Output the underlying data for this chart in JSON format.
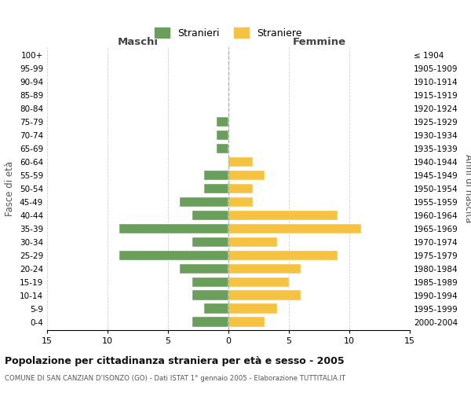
{
  "age_groups": [
    "100+",
    "95-99",
    "90-94",
    "85-89",
    "80-84",
    "75-79",
    "70-74",
    "65-69",
    "60-64",
    "55-59",
    "50-54",
    "45-49",
    "40-44",
    "35-39",
    "30-34",
    "25-29",
    "20-24",
    "15-19",
    "10-14",
    "5-9",
    "0-4"
  ],
  "birth_years": [
    "≤ 1904",
    "1905-1909",
    "1910-1914",
    "1915-1919",
    "1920-1924",
    "1925-1929",
    "1930-1934",
    "1935-1939",
    "1940-1944",
    "1945-1949",
    "1950-1954",
    "1955-1959",
    "1960-1964",
    "1965-1969",
    "1970-1974",
    "1975-1979",
    "1980-1984",
    "1985-1989",
    "1990-1994",
    "1995-1999",
    "2000-2004"
  ],
  "maschi": [
    0,
    0,
    0,
    0,
    0,
    1,
    1,
    1,
    0,
    2,
    2,
    4,
    3,
    9,
    3,
    9,
    4,
    3,
    3,
    2,
    3
  ],
  "femmine": [
    0,
    0,
    0,
    0,
    0,
    0,
    0,
    0,
    2,
    3,
    2,
    2,
    9,
    11,
    4,
    9,
    6,
    5,
    6,
    4,
    3
  ],
  "maschi_color": "#6a9e5b",
  "femmine_color": "#f5c242",
  "title": "Popolazione per cittadinanza straniera per età e sesso - 2005",
  "subtitle": "COMUNE DI SAN CANZIAN D'ISONZO (GO) - Dati ISTAT 1° gennaio 2005 - Elaborazione TUTTITALIA.IT",
  "ylabel_left": "Fasce di età",
  "ylabel_right": "Anni di nascita",
  "xlabel_left": "Maschi",
  "xlabel_right": "Femmine",
  "legend_maschi": "Stranieri",
  "legend_femmine": "Straniere",
  "xlim": 15,
  "background_color": "#ffffff",
  "grid_color": "#cccccc"
}
